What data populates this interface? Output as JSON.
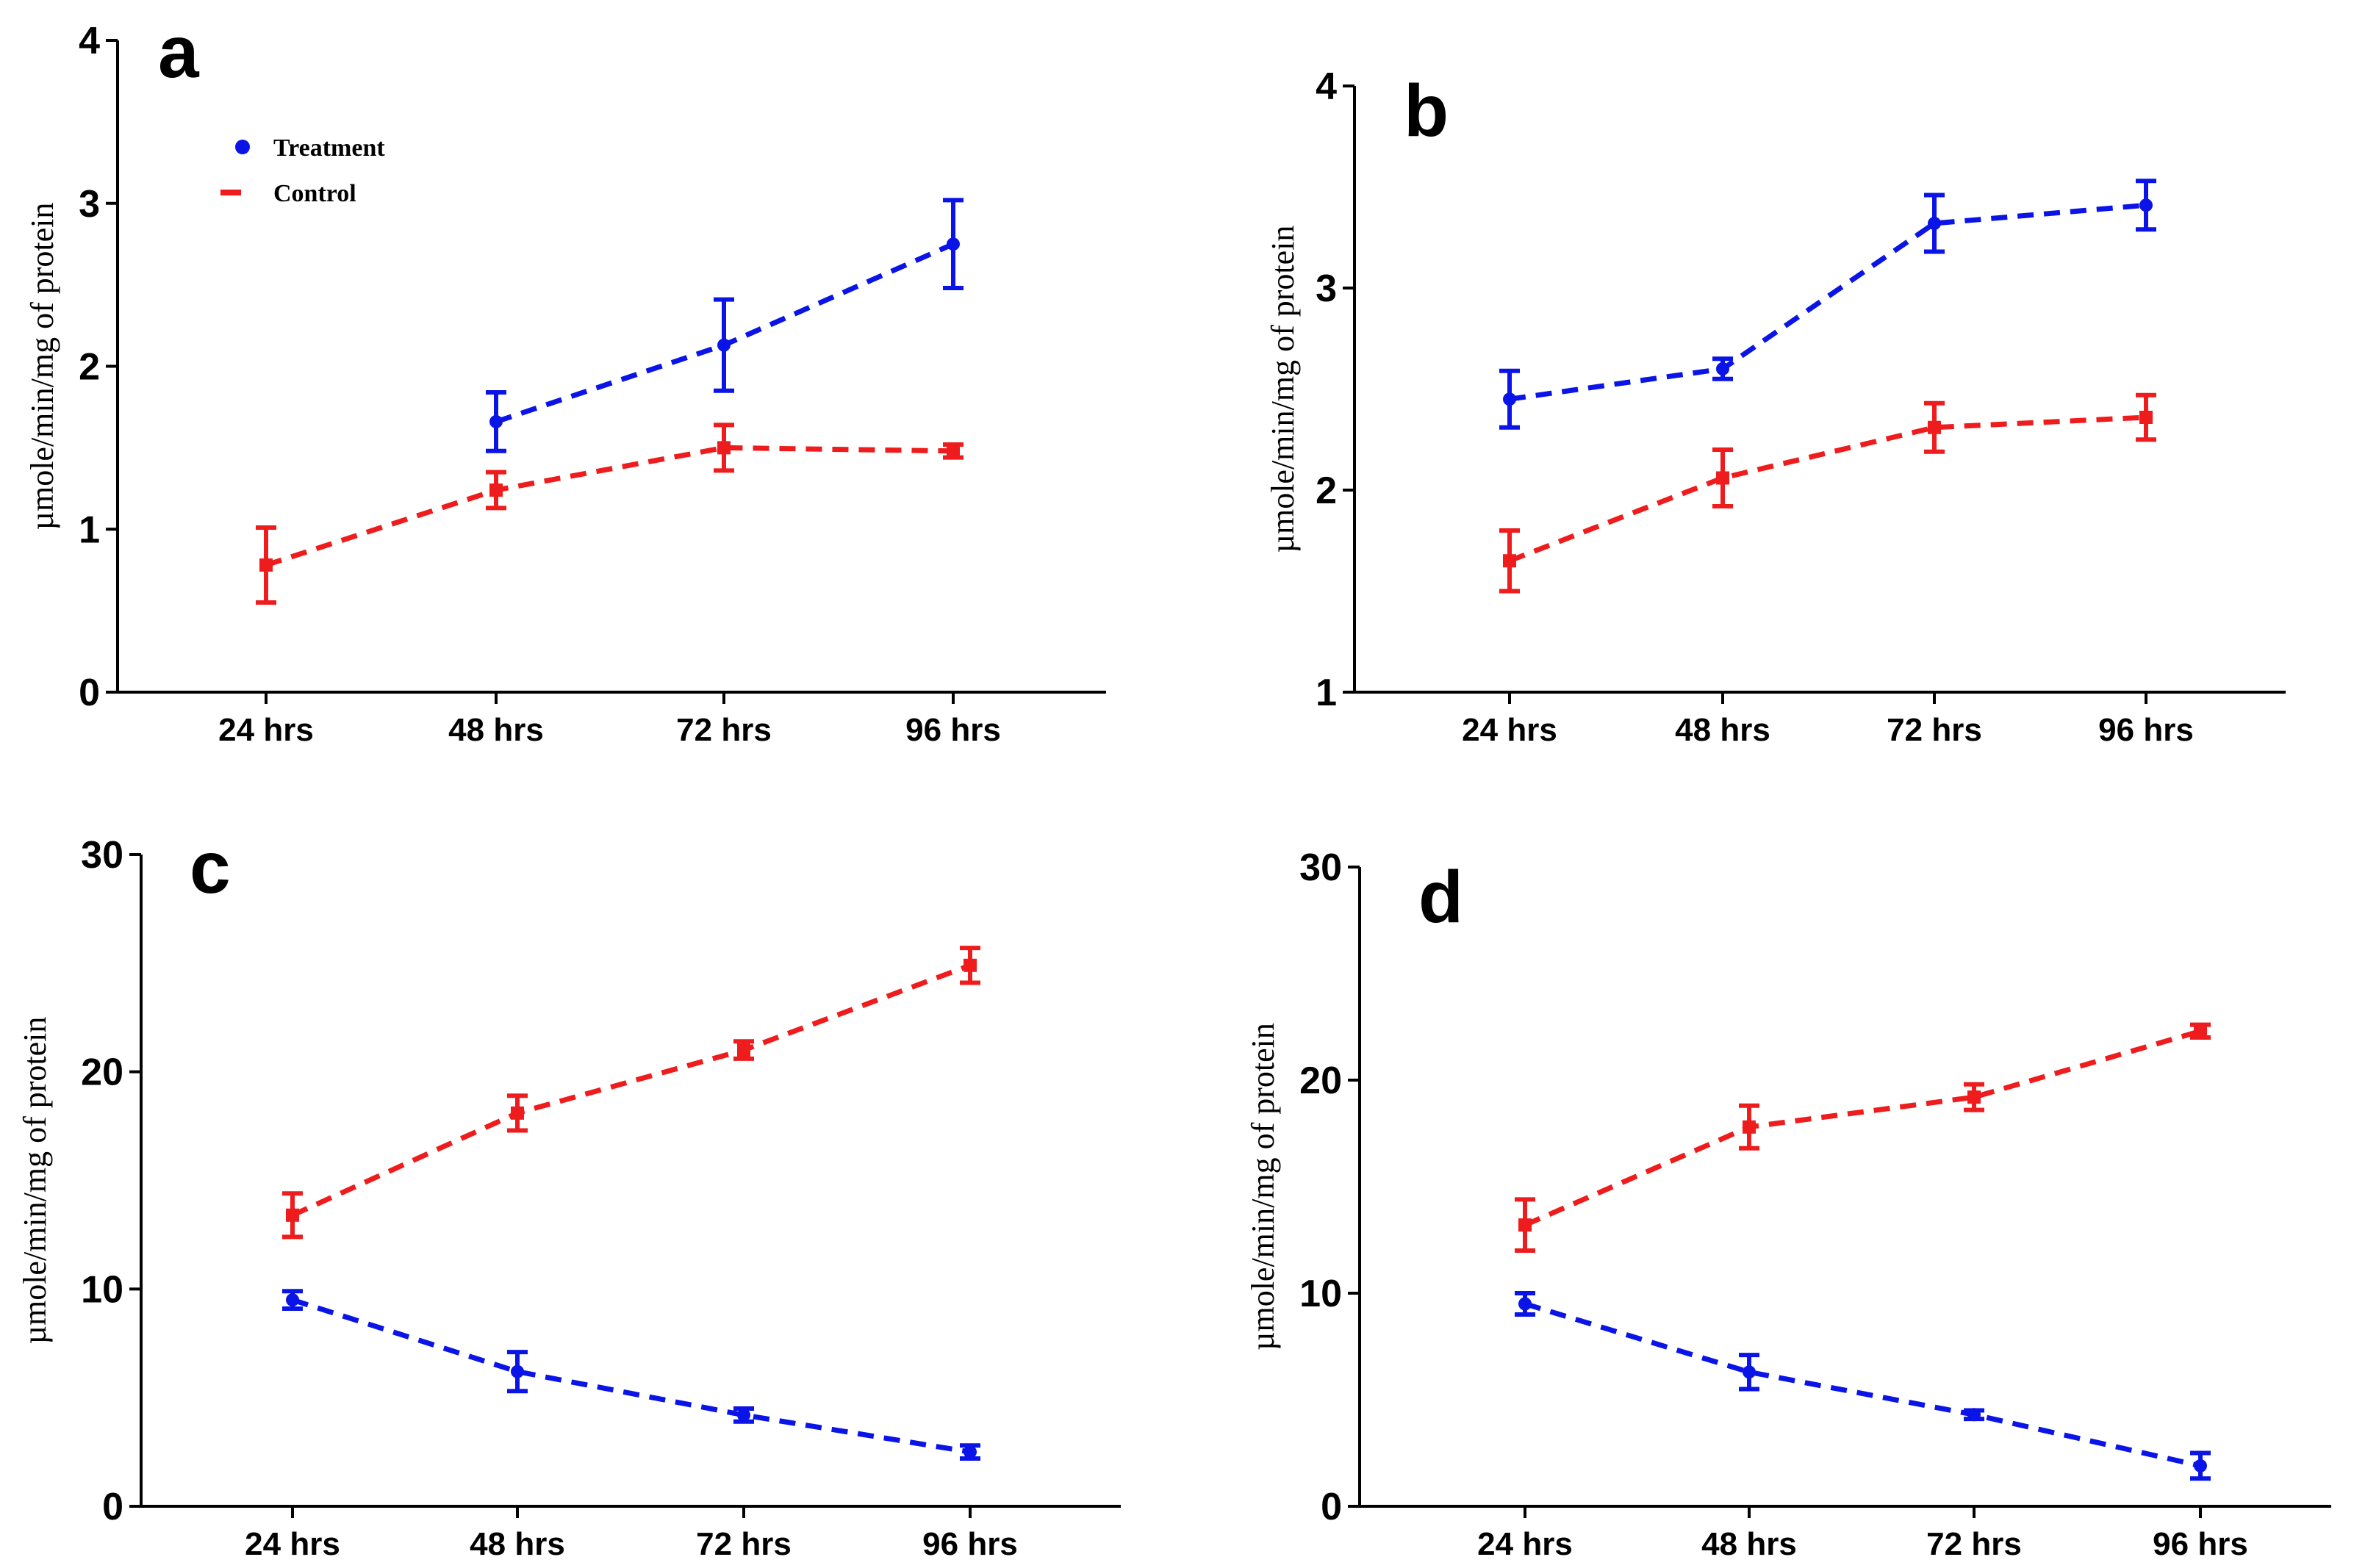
{
  "colors": {
    "treatment": "#0a14e6",
    "control": "#ee1c1c"
  },
  "legend": {
    "treatment": "Treatment",
    "control": "Control"
  },
  "chart_data": [
    {
      "type": "line",
      "panel_label": "a",
      "title": "",
      "xlabel": "",
      "ylabel": "µmole/min/mg of protein",
      "categories": [
        "24 hrs",
        "48 hrs",
        "72 hrs",
        "96 hrs"
      ],
      "ylim": [
        0,
        4
      ],
      "yticks": [
        "0",
        "1",
        "2",
        "3",
        "4"
      ],
      "legend_position": "top-left",
      "series": [
        {
          "name": "Treatment",
          "color": "#0a14e6",
          "values": [
            null,
            1.66,
            2.13,
            2.75
          ],
          "errors": [
            null,
            0.18,
            0.28,
            0.27
          ]
        },
        {
          "name": "Control",
          "color": "#ee1c1c",
          "values": [
            0.78,
            1.24,
            1.5,
            1.48
          ],
          "errors": [
            0.23,
            0.11,
            0.14,
            0.04
          ]
        }
      ]
    },
    {
      "type": "line",
      "panel_label": "b",
      "title": "",
      "xlabel": "",
      "ylabel": "µmole/min/mg of protein",
      "categories": [
        "24 hrs",
        "48 hrs",
        "72 hrs",
        "96 hrs"
      ],
      "ylim": [
        1,
        4
      ],
      "yticks": [
        "1",
        "2",
        "3",
        "4"
      ],
      "legend_position": "none",
      "series": [
        {
          "name": "Treatment",
          "color": "#0a14e6",
          "values": [
            2.45,
            2.6,
            3.32,
            3.41
          ],
          "errors": [
            0.14,
            0.05,
            0.14,
            0.12
          ]
        },
        {
          "name": "Control",
          "color": "#ee1c1c",
          "values": [
            1.65,
            2.06,
            2.31,
            2.36
          ],
          "errors": [
            0.15,
            0.14,
            0.12,
            0.11
          ]
        }
      ]
    },
    {
      "type": "line",
      "panel_label": "c",
      "title": "",
      "xlabel": "",
      "ylabel": "µmole/min/mg of protein",
      "categories": [
        "24 hrs",
        "48 hrs",
        "72 hrs",
        "96 hrs"
      ],
      "ylim": [
        0,
        30
      ],
      "yticks": [
        "0",
        "10",
        "20",
        "30"
      ],
      "legend_position": "none",
      "series": [
        {
          "name": "Treatment",
          "color": "#0a14e6",
          "values": [
            9.5,
            6.2,
            4.2,
            2.5
          ],
          "errors": [
            0.4,
            0.9,
            0.3,
            0.3
          ]
        },
        {
          "name": "Control",
          "color": "#ee1c1c",
          "values": [
            13.4,
            18.1,
            21.0,
            24.9
          ],
          "errors": [
            1.0,
            0.8,
            0.4,
            0.8
          ]
        }
      ]
    },
    {
      "type": "line",
      "panel_label": "d",
      "title": "",
      "xlabel": "",
      "ylabel": "µmole/min/mg of protein",
      "categories": [
        "24 hrs",
        "48 hrs",
        "72 hrs",
        "96 hrs"
      ],
      "ylim": [
        0,
        30
      ],
      "yticks": [
        "0",
        "10",
        "20",
        "30"
      ],
      "legend_position": "none",
      "series": [
        {
          "name": "Treatment",
          "color": "#0a14e6",
          "values": [
            9.5,
            6.3,
            4.3,
            1.9
          ],
          "errors": [
            0.5,
            0.8,
            0.2,
            0.6
          ]
        },
        {
          "name": "Control",
          "color": "#ee1c1c",
          "values": [
            13.2,
            17.8,
            19.2,
            22.3
          ],
          "errors": [
            1.2,
            1.0,
            0.6,
            0.3
          ]
        }
      ]
    }
  ]
}
